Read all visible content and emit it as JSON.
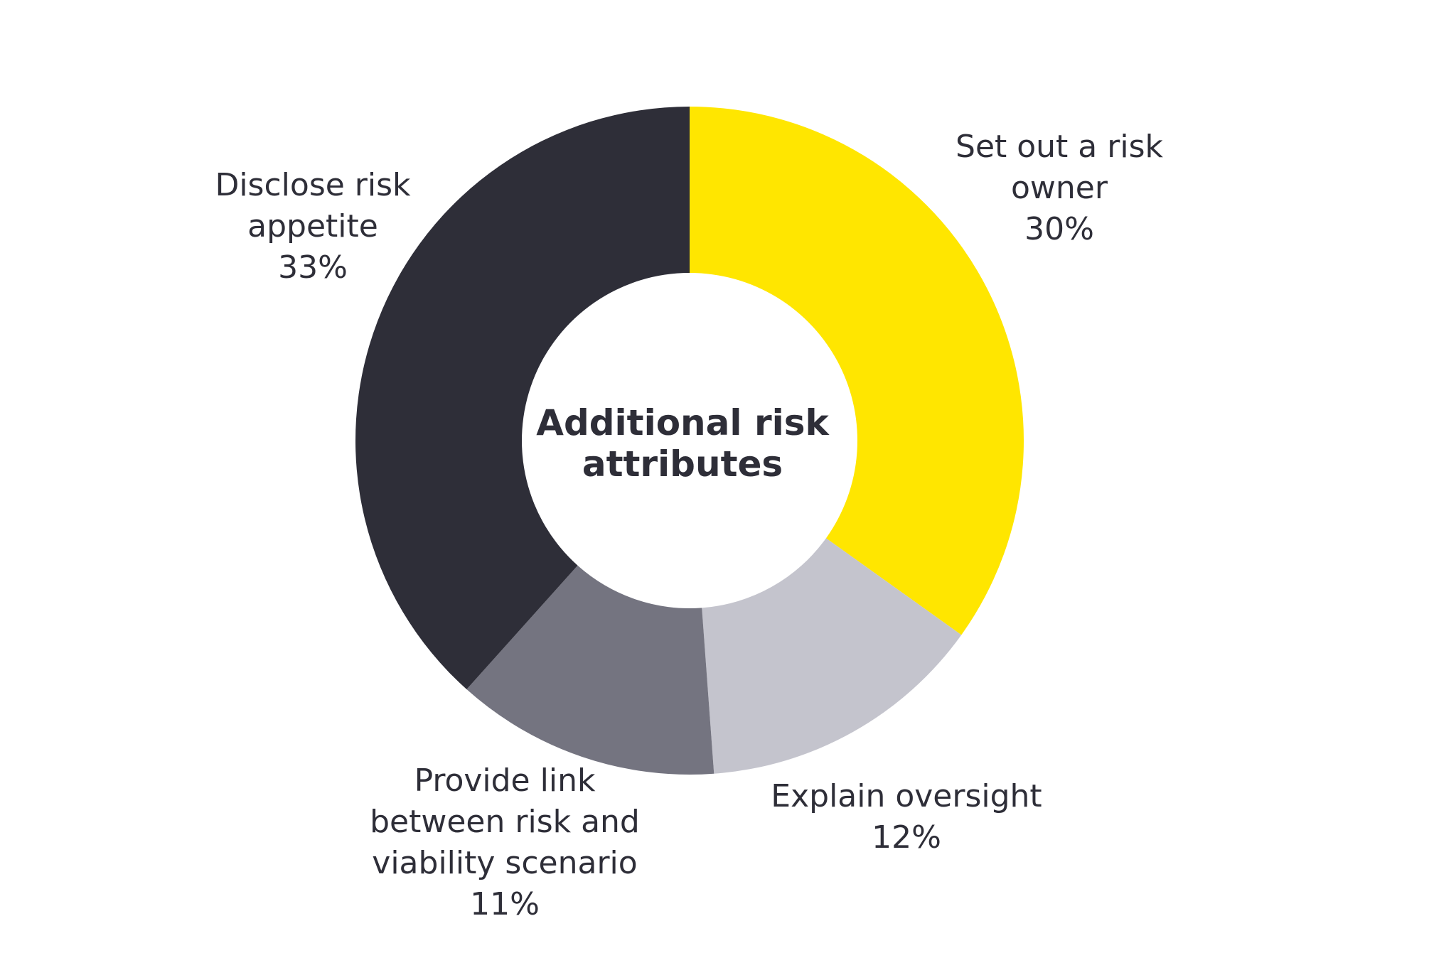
{
  "chart_data": {
    "type": "pie",
    "variant": "donut",
    "center_label": [
      "Additional risk",
      "attributes"
    ],
    "slices": [
      {
        "label_lines": [
          "Set out a risk",
          "owner"
        ],
        "value_label": "30%",
        "value": 30,
        "color": "#ffe600"
      },
      {
        "label_lines": [
          "Explain oversight"
        ],
        "value_label": "12%",
        "value": 12,
        "color": "#c4c4cd"
      },
      {
        "label_lines": [
          "Provide link",
          "between risk and",
          "viability scenario"
        ],
        "value_label": "11%",
        "value": 11,
        "color": "#747480"
      },
      {
        "label_lines": [
          "Disclose risk",
          "appetite"
        ],
        "value_label": "33%",
        "value": 33,
        "color": "#2e2e38"
      }
    ],
    "legend": "none"
  }
}
